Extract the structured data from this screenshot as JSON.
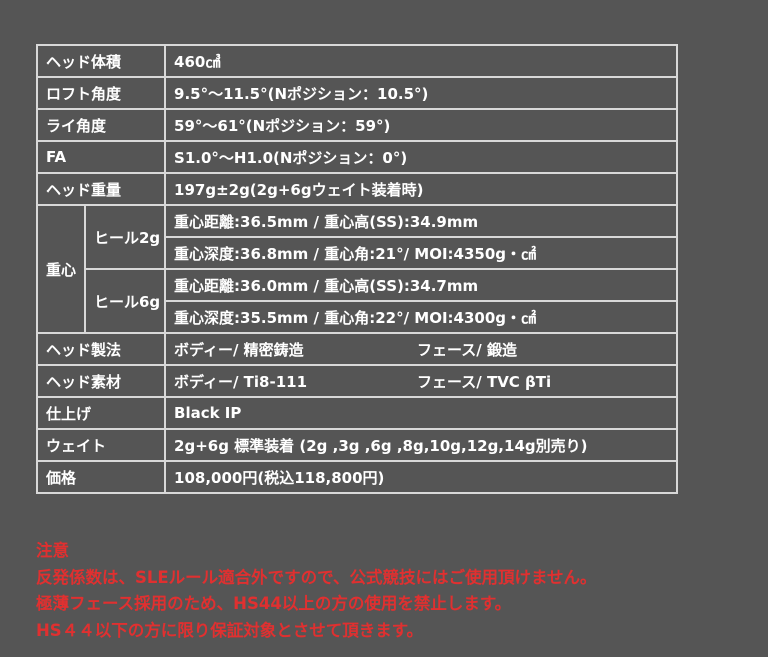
{
  "spec_table": {
    "rows_top": [
      {
        "label": "ヘッド体積",
        "value": "460㎤"
      },
      {
        "label": "ロフト角度",
        "value": "9.5°～11.5°(Nポジション：10.5°)"
      },
      {
        "label": "ライ角度",
        "value": "59°～61°(Nポジション：59°)"
      },
      {
        "label": "FA",
        "value": "S1.0°～H1.0(Nポジション：0°)"
      },
      {
        "label": "ヘッド重量",
        "value": "197g±2g(2g+6gウェイト装着時)"
      }
    ],
    "center_of_gravity": {
      "label": "重心",
      "groups": [
        {
          "label": "ヒール2g",
          "lines": [
            "重心距離:36.5mm / 重心高(SS):34.9mm",
            "重心深度:36.8mm / 重心角:21°/ MOI:4350g・㎠"
          ]
        },
        {
          "label": "ヒール6g",
          "lines": [
            "重心距離:36.0mm / 重心高(SS):34.7mm",
            "重心深度:35.5mm / 重心角:22°/ MOI:4300g・㎠"
          ]
        }
      ]
    },
    "manufacturing": {
      "label": "ヘッド製法",
      "body": "ボディー/ 精密鋳造",
      "face": "フェース/ 鍛造"
    },
    "material": {
      "label": "ヘッド素材",
      "body": "ボディー/ Ti8-111",
      "face": "フェース/ TVC βTi"
    },
    "rows_bottom": [
      {
        "label": "仕上げ",
        "value": "Black IP"
      },
      {
        "label": "ウェイト",
        "value": "2g+6g 標準装着 (2g ,3g ,6g ,8g,10g,12g,14g別売り)"
      },
      {
        "label": "価格",
        "value": "108,000円(税込118,800円)"
      }
    ]
  },
  "notes": {
    "title": "注意",
    "lines": [
      "反発係数は、SLEルール適合外ですので、公式競技にはご使用頂けません。",
      "極薄フェース採用のため、HS44以上の方の使用を禁止します。",
      "HS４４以下の方に限り保証対象とさせて頂きます。"
    ],
    "color": "#e03030"
  }
}
